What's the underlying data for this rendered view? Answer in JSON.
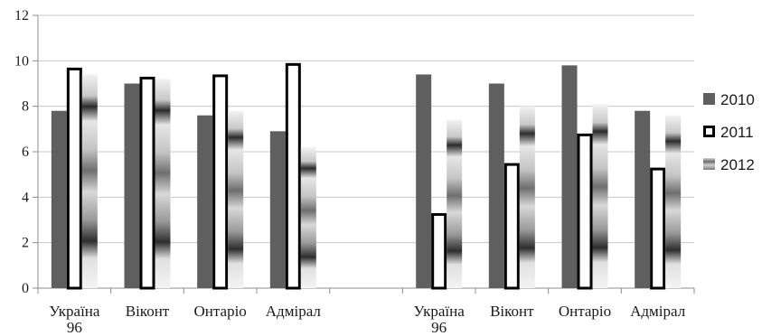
{
  "chart_data": {
    "type": "bar",
    "ylim": [
      0,
      12
    ],
    "yticks": [
      0,
      2,
      4,
      6,
      8,
      10,
      12
    ],
    "grid": true,
    "legend_position": "right",
    "groups": [
      {
        "categories": [
          [
            "Україна",
            "96"
          ],
          [
            "Віконт"
          ],
          [
            "Онтаріо"
          ],
          [
            "Адмірал"
          ]
        ],
        "series": [
          {
            "name": "2010",
            "values": [
              7.8,
              9.0,
              7.6,
              6.9
            ]
          },
          {
            "name": "2011",
            "values": [
              9.7,
              9.3,
              9.4,
              9.9
            ]
          },
          {
            "name": "2012",
            "values": [
              9.4,
              9.2,
              7.8,
              6.2
            ]
          }
        ]
      },
      {
        "categories": [
          [
            "Україна",
            "96"
          ],
          [
            "Віконт"
          ],
          [
            "Онтаріо"
          ],
          [
            "Адмірал"
          ]
        ],
        "series": [
          {
            "name": "2010",
            "values": [
              9.4,
              9.0,
              9.8,
              7.8
            ]
          },
          {
            "name": "2011",
            "values": [
              3.3,
              5.5,
              6.8,
              5.3
            ]
          },
          {
            "name": "2012",
            "values": [
              7.4,
              8.0,
              8.1,
              7.6
            ]
          }
        ]
      }
    ],
    "colors": {
      "2010": "#5f5f5f",
      "2011": "#ffffff",
      "2011_border": "#000000",
      "grid": "#c8c8c8",
      "axis": "#8c8c8c"
    }
  }
}
